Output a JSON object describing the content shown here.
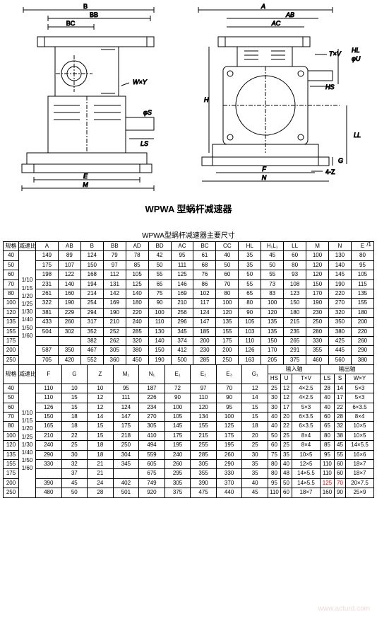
{
  "title": "WPWA 型蜗杆减速器",
  "table_title": "WPWA型蜗杆减速器主要尺寸",
  "diagram_labels": {
    "left": [
      "B",
      "BB",
      "BC",
      "W×Y",
      "φS",
      "LS",
      "E",
      "M"
    ],
    "right": [
      "A",
      "AB",
      "AC",
      "H",
      "T×V",
      "φU",
      "HL",
      "HS",
      "F",
      "N",
      "G",
      "LL",
      "4-Z"
    ]
  },
  "ratio_label": "减速比",
  "spec_label": "规格",
  "ratio_values": [
    "1/10",
    "1/15",
    "1/20",
    "1/25",
    "1/30",
    "1/40",
    "1/50",
    "1/60"
  ],
  "table1": {
    "headers": [
      "A",
      "AB",
      "B",
      "BB",
      "AD",
      "BD",
      "AC",
      "BC",
      "CC",
      "HL",
      "H₁L₁",
      "LL",
      "M",
      "N",
      "E"
    ],
    "specs": [
      "40",
      "50",
      "60",
      "70",
      "80",
      "100",
      "120",
      "135",
      "155",
      "175",
      "200",
      "250"
    ],
    "rows": [
      [
        "149",
        "89",
        "124",
        "79",
        "78",
        "42",
        "95",
        "61",
        "40",
        "35",
        "45",
        "60",
        "100",
        "130",
        "80"
      ],
      [
        "175",
        "107",
        "150",
        "97",
        "85",
        "50",
        "111",
        "68",
        "50",
        "35",
        "50",
        "80",
        "120",
        "140",
        "95"
      ],
      [
        "198",
        "122",
        "168",
        "112",
        "105",
        "55",
        "125",
        "76",
        "60",
        "50",
        "55",
        "93",
        "120",
        "145",
        "105"
      ],
      [
        "231",
        "140",
        "194",
        "131",
        "125",
        "65",
        "146",
        "86",
        "70",
        "55",
        "73",
        "108",
        "150",
        "190",
        "115"
      ],
      [
        "261",
        "160",
        "214",
        "142",
        "140",
        "75",
        "169",
        "102",
        "80",
        "65",
        "83",
        "123",
        "170",
        "220",
        "135"
      ],
      [
        "322",
        "190",
        "254",
        "169",
        "180",
        "90",
        "210",
        "117",
        "100",
        "80",
        "100",
        "150",
        "190",
        "270",
        "155"
      ],
      [
        "381",
        "229",
        "294",
        "190",
        "220",
        "100",
        "256",
        "124",
        "120",
        "90",
        "120",
        "180",
        "230",
        "320",
        "180"
      ],
      [
        "433",
        "260",
        "317",
        "210",
        "240",
        "110",
        "296",
        "147",
        "135",
        "105",
        "135",
        "215",
        "250",
        "350",
        "200"
      ],
      [
        "504",
        "302",
        "352",
        "252",
        "285",
        "130",
        "345",
        "185",
        "155",
        "103",
        "135",
        "235",
        "280",
        "380",
        "220"
      ],
      [
        "",
        "",
        "382",
        "262",
        "320",
        "140",
        "374",
        "200",
        "175",
        "110",
        "150",
        "265",
        "330",
        "425",
        "260"
      ],
      [
        "587",
        "350",
        "467",
        "305",
        "380",
        "150",
        "412",
        "230",
        "200",
        "126",
        "170",
        "291",
        "355",
        "445",
        "290"
      ],
      [
        "705",
        "420",
        "552",
        "360",
        "450",
        "190",
        "500",
        "285",
        "250",
        "163",
        "205",
        "375",
        "460",
        "560",
        "380"
      ]
    ]
  },
  "table2": {
    "headers_top": [
      "F",
      "G",
      "Z",
      "M₁",
      "N₁",
      "E₁",
      "E₂",
      "E₃",
      "G₁",
      "输入轴",
      "输出轴"
    ],
    "headers_sub_in": [
      "HS",
      "U",
      "T×V"
    ],
    "headers_sub_out": [
      "LS",
      "S",
      "W×Y"
    ],
    "specs": [
      "40",
      "50",
      "60",
      "70",
      "80",
      "100",
      "120",
      "135",
      "155",
      "175",
      "200",
      "250"
    ],
    "rows": [
      [
        "110",
        "10",
        "10",
        "95",
        "187",
        "72",
        "97",
        "70",
        "12",
        "25",
        "12",
        "4×2.5",
        "28",
        "14",
        "5×3"
      ],
      [
        "110",
        "15",
        "12",
        "111",
        "226",
        "90",
        "110",
        "90",
        "14",
        "30",
        "12",
        "4×2.5",
        "40",
        "17",
        "5×3"
      ],
      [
        "126",
        "15",
        "12",
        "124",
        "234",
        "100",
        "120",
        "95",
        "15",
        "30",
        "17",
        "5×3",
        "40",
        "22",
        "6×3.5"
      ],
      [
        "150",
        "18",
        "14",
        "147",
        "270",
        "105",
        "134",
        "100",
        "15",
        "40",
        "20",
        "6×3.5",
        "60",
        "28",
        "8×4"
      ],
      [
        "165",
        "18",
        "15",
        "175",
        "305",
        "145",
        "155",
        "125",
        "18",
        "40",
        "22",
        "6×3.5",
        "65",
        "32",
        "10×5"
      ],
      [
        "210",
        "22",
        "15",
        "218",
        "410",
        "175",
        "215",
        "175",
        "20",
        "50",
        "25",
        "8×4",
        "80",
        "38",
        "10×5"
      ],
      [
        "240",
        "25",
        "18",
        "250",
        "494",
        "195",
        "255",
        "195",
        "25",
        "60",
        "25",
        "8×4",
        "85",
        "45",
        "14×5.5"
      ],
      [
        "290",
        "30",
        "18",
        "304",
        "559",
        "240",
        "285",
        "260",
        "30",
        "75",
        "35",
        "10×5",
        "95",
        "55",
        "16×6"
      ],
      [
        "330",
        "32",
        "21",
        "345",
        "605",
        "260",
        "305",
        "290",
        "35",
        "80",
        "40",
        "12×5",
        "110",
        "60",
        "18×7"
      ],
      [
        "",
        "37",
        "21",
        "",
        "675",
        "295",
        "355",
        "330",
        "35",
        "80",
        "48",
        "14×5.5",
        "110",
        "60",
        "18×7"
      ],
      [
        "390",
        "45",
        "24",
        "402",
        "749",
        "305",
        "390",
        "370",
        "40",
        "95",
        "50",
        "14×5.5",
        "125",
        "70",
        "20×7.5"
      ],
      [
        "480",
        "50",
        "28",
        "501",
        "920",
        "375",
        "475",
        "440",
        "45",
        "110",
        "60",
        "18×7",
        "160",
        "90",
        "25×9"
      ]
    ],
    "highlight": {
      "row": 10,
      "cols": [
        14,
        15
      ]
    }
  },
  "colors": {
    "line": "#000000",
    "bg": "#ffffff",
    "highlight": "#ff0000"
  }
}
